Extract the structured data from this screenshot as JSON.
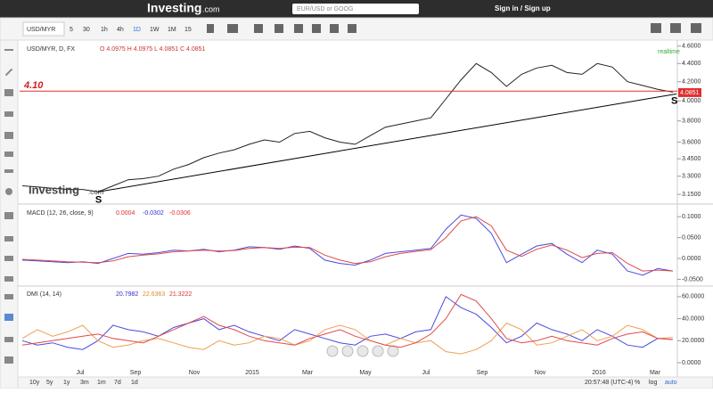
{
  "header": {
    "logo": "Investing",
    "logo_suffix": ".com",
    "search_placeholder": "EUR/USD or GOOG",
    "sign_in": "Sign in / Sign up"
  },
  "toolbar": {
    "symbol": "USD/MYR",
    "intervals": [
      "5",
      "30",
      "1h",
      "4h",
      "1D",
      "1W",
      "1M",
      "15"
    ]
  },
  "chart_data": [
    {
      "type": "line",
      "title": "USD/MYR, D, FX",
      "ohlc_label": "O 4.0975 H 4.0975 L 4.0851 C 4.0851",
      "realtime": "realtime",
      "watermark": "Investing",
      "watermark_suffix": ".com",
      "hline": {
        "value": 4.1,
        "label": "4.10"
      },
      "last_price": 4.0851,
      "markers": [
        "S",
        "S"
      ],
      "color": "#222222",
      "log_scale": true,
      "values": [
        3.22,
        3.21,
        3.2,
        3.19,
        3.19,
        3.17,
        3.22,
        3.27,
        3.28,
        3.3,
        3.36,
        3.4,
        3.46,
        3.5,
        3.53,
        3.58,
        3.62,
        3.6,
        3.68,
        3.7,
        3.64,
        3.6,
        3.58,
        3.66,
        3.74,
        3.77,
        3.8,
        3.83,
        4.02,
        4.22,
        4.4,
        4.3,
        4.15,
        4.28,
        4.35,
        4.38,
        4.3,
        4.28,
        4.4,
        4.36,
        4.2,
        4.16,
        4.12,
        4.09
      ],
      "ylim": [
        3.08,
        4.65
      ],
      "yticks": [
        {
          "value": 4.6,
          "label": "4.6000"
        },
        {
          "value": 4.4,
          "label": "4.4000"
        },
        {
          "value": 4.2,
          "label": "4.2000"
        },
        {
          "value": 4.0,
          "label": "4.0000"
        },
        {
          "value": 3.8,
          "label": "3.8000"
        },
        {
          "value": 3.6,
          "label": "3.6000"
        },
        {
          "value": 3.45,
          "label": "3.4500"
        },
        {
          "value": 3.3,
          "label": "3.3000"
        },
        {
          "value": 3.15,
          "label": "3.1500"
        }
      ]
    },
    {
      "type": "line",
      "title": "MACD (12, 26, close, 9)",
      "readout": [
        0.0004,
        -0.0302,
        -0.0306
      ],
      "readout_colors": [
        "#e03030",
        "#3030d0",
        "#e03030"
      ],
      "series": [
        {
          "color": "#4a4ae0",
          "values": [
            -0.004,
            -0.006,
            -0.008,
            -0.01,
            -0.008,
            -0.012,
            0,
            0.012,
            0.01,
            0.014,
            0.02,
            0.018,
            0.022,
            0.016,
            0.02,
            0.028,
            0.026,
            0.022,
            0.03,
            0.024,
            -0.004,
            -0.012,
            -0.016,
            -0.004,
            0.012,
            0.016,
            0.02,
            0.024,
            0.07,
            0.104,
            0.096,
            0.06,
            -0.01,
            0.01,
            0.03,
            0.036,
            0.01,
            -0.01,
            0.02,
            0.01,
            -0.03,
            -0.04,
            -0.024,
            -0.03
          ]
        },
        {
          "color": "#e04a4a",
          "values": [
            -0.002,
            -0.004,
            -0.006,
            -0.008,
            -0.009,
            -0.01,
            -0.006,
            0.004,
            0.008,
            0.011,
            0.016,
            0.018,
            0.02,
            0.018,
            0.019,
            0.024,
            0.026,
            0.024,
            0.027,
            0.026,
            0.008,
            -0.004,
            -0.012,
            -0.008,
            0.004,
            0.012,
            0.017,
            0.021,
            0.05,
            0.09,
            0.1,
            0.078,
            0.02,
            0.005,
            0.022,
            0.032,
            0.02,
            0.002,
            0.012,
            0.014,
            -0.012,
            -0.03,
            -0.028,
            -0.03
          ]
        }
      ],
      "ylim": [
        -0.064,
        0.126
      ],
      "yticks": [
        {
          "value": 0.1,
          "label": "0.1000"
        },
        {
          "value": 0.05,
          "label": "0.0500"
        },
        {
          "value": 0,
          "label": "0.0000"
        },
        {
          "value": -0.05,
          "label": "-0.0500"
        }
      ]
    },
    {
      "type": "line",
      "title": "DMI (14, 14)",
      "readout": [
        20.7982,
        22.6363,
        21.3222
      ],
      "readout_colors": [
        "#3030d0",
        "#e08a30",
        "#e03030"
      ],
      "series": [
        {
          "color": "#4a4ae0",
          "values": [
            20,
            16,
            18,
            14,
            12,
            20,
            34,
            30,
            28,
            24,
            32,
            36,
            40,
            30,
            34,
            28,
            24,
            20,
            30,
            26,
            22,
            18,
            16,
            24,
            26,
            22,
            28,
            30,
            60,
            50,
            44,
            32,
            18,
            24,
            36,
            30,
            26,
            20,
            30,
            24,
            16,
            14,
            22,
            21
          ]
        },
        {
          "color": "#f0a050",
          "values": [
            22,
            30,
            24,
            28,
            34,
            20,
            14,
            16,
            20,
            22,
            18,
            14,
            12,
            20,
            16,
            18,
            24,
            22,
            16,
            20,
            30,
            34,
            30,
            20,
            16,
            22,
            18,
            20,
            10,
            8,
            12,
            20,
            36,
            30,
            16,
            18,
            24,
            30,
            20,
            24,
            34,
            30,
            22,
            23
          ]
        },
        {
          "color": "#e04a4a",
          "values": [
            16,
            18,
            20,
            22,
            24,
            26,
            22,
            20,
            18,
            24,
            30,
            36,
            42,
            34,
            30,
            24,
            20,
            18,
            16,
            22,
            26,
            30,
            24,
            20,
            16,
            14,
            18,
            26,
            40,
            62,
            56,
            40,
            22,
            18,
            20,
            24,
            20,
            18,
            16,
            22,
            26,
            28,
            22,
            21
          ]
        }
      ],
      "ylim": [
        -6.5,
        68.8
      ],
      "yticks": [
        {
          "value": 60,
          "label": "60.0000"
        },
        {
          "value": 40,
          "label": "40.0000"
        },
        {
          "value": 20,
          "label": "20.0000"
        },
        {
          "value": 0,
          "label": "0.0000"
        }
      ]
    }
  ],
  "x_axis_labels": [
    "Jul",
    "Sep",
    "Nov",
    "2015",
    "Mar",
    "May",
    "Jul",
    "Sep",
    "Nov",
    "2016",
    "Mar"
  ],
  "range_buttons": [
    "10y",
    "5y",
    "1y",
    "3m",
    "1m",
    "7d",
    "1d"
  ],
  "footer": {
    "time": "20:57:48 (UTC-4)",
    "percent": "%",
    "log": "log",
    "auto": "auto"
  }
}
